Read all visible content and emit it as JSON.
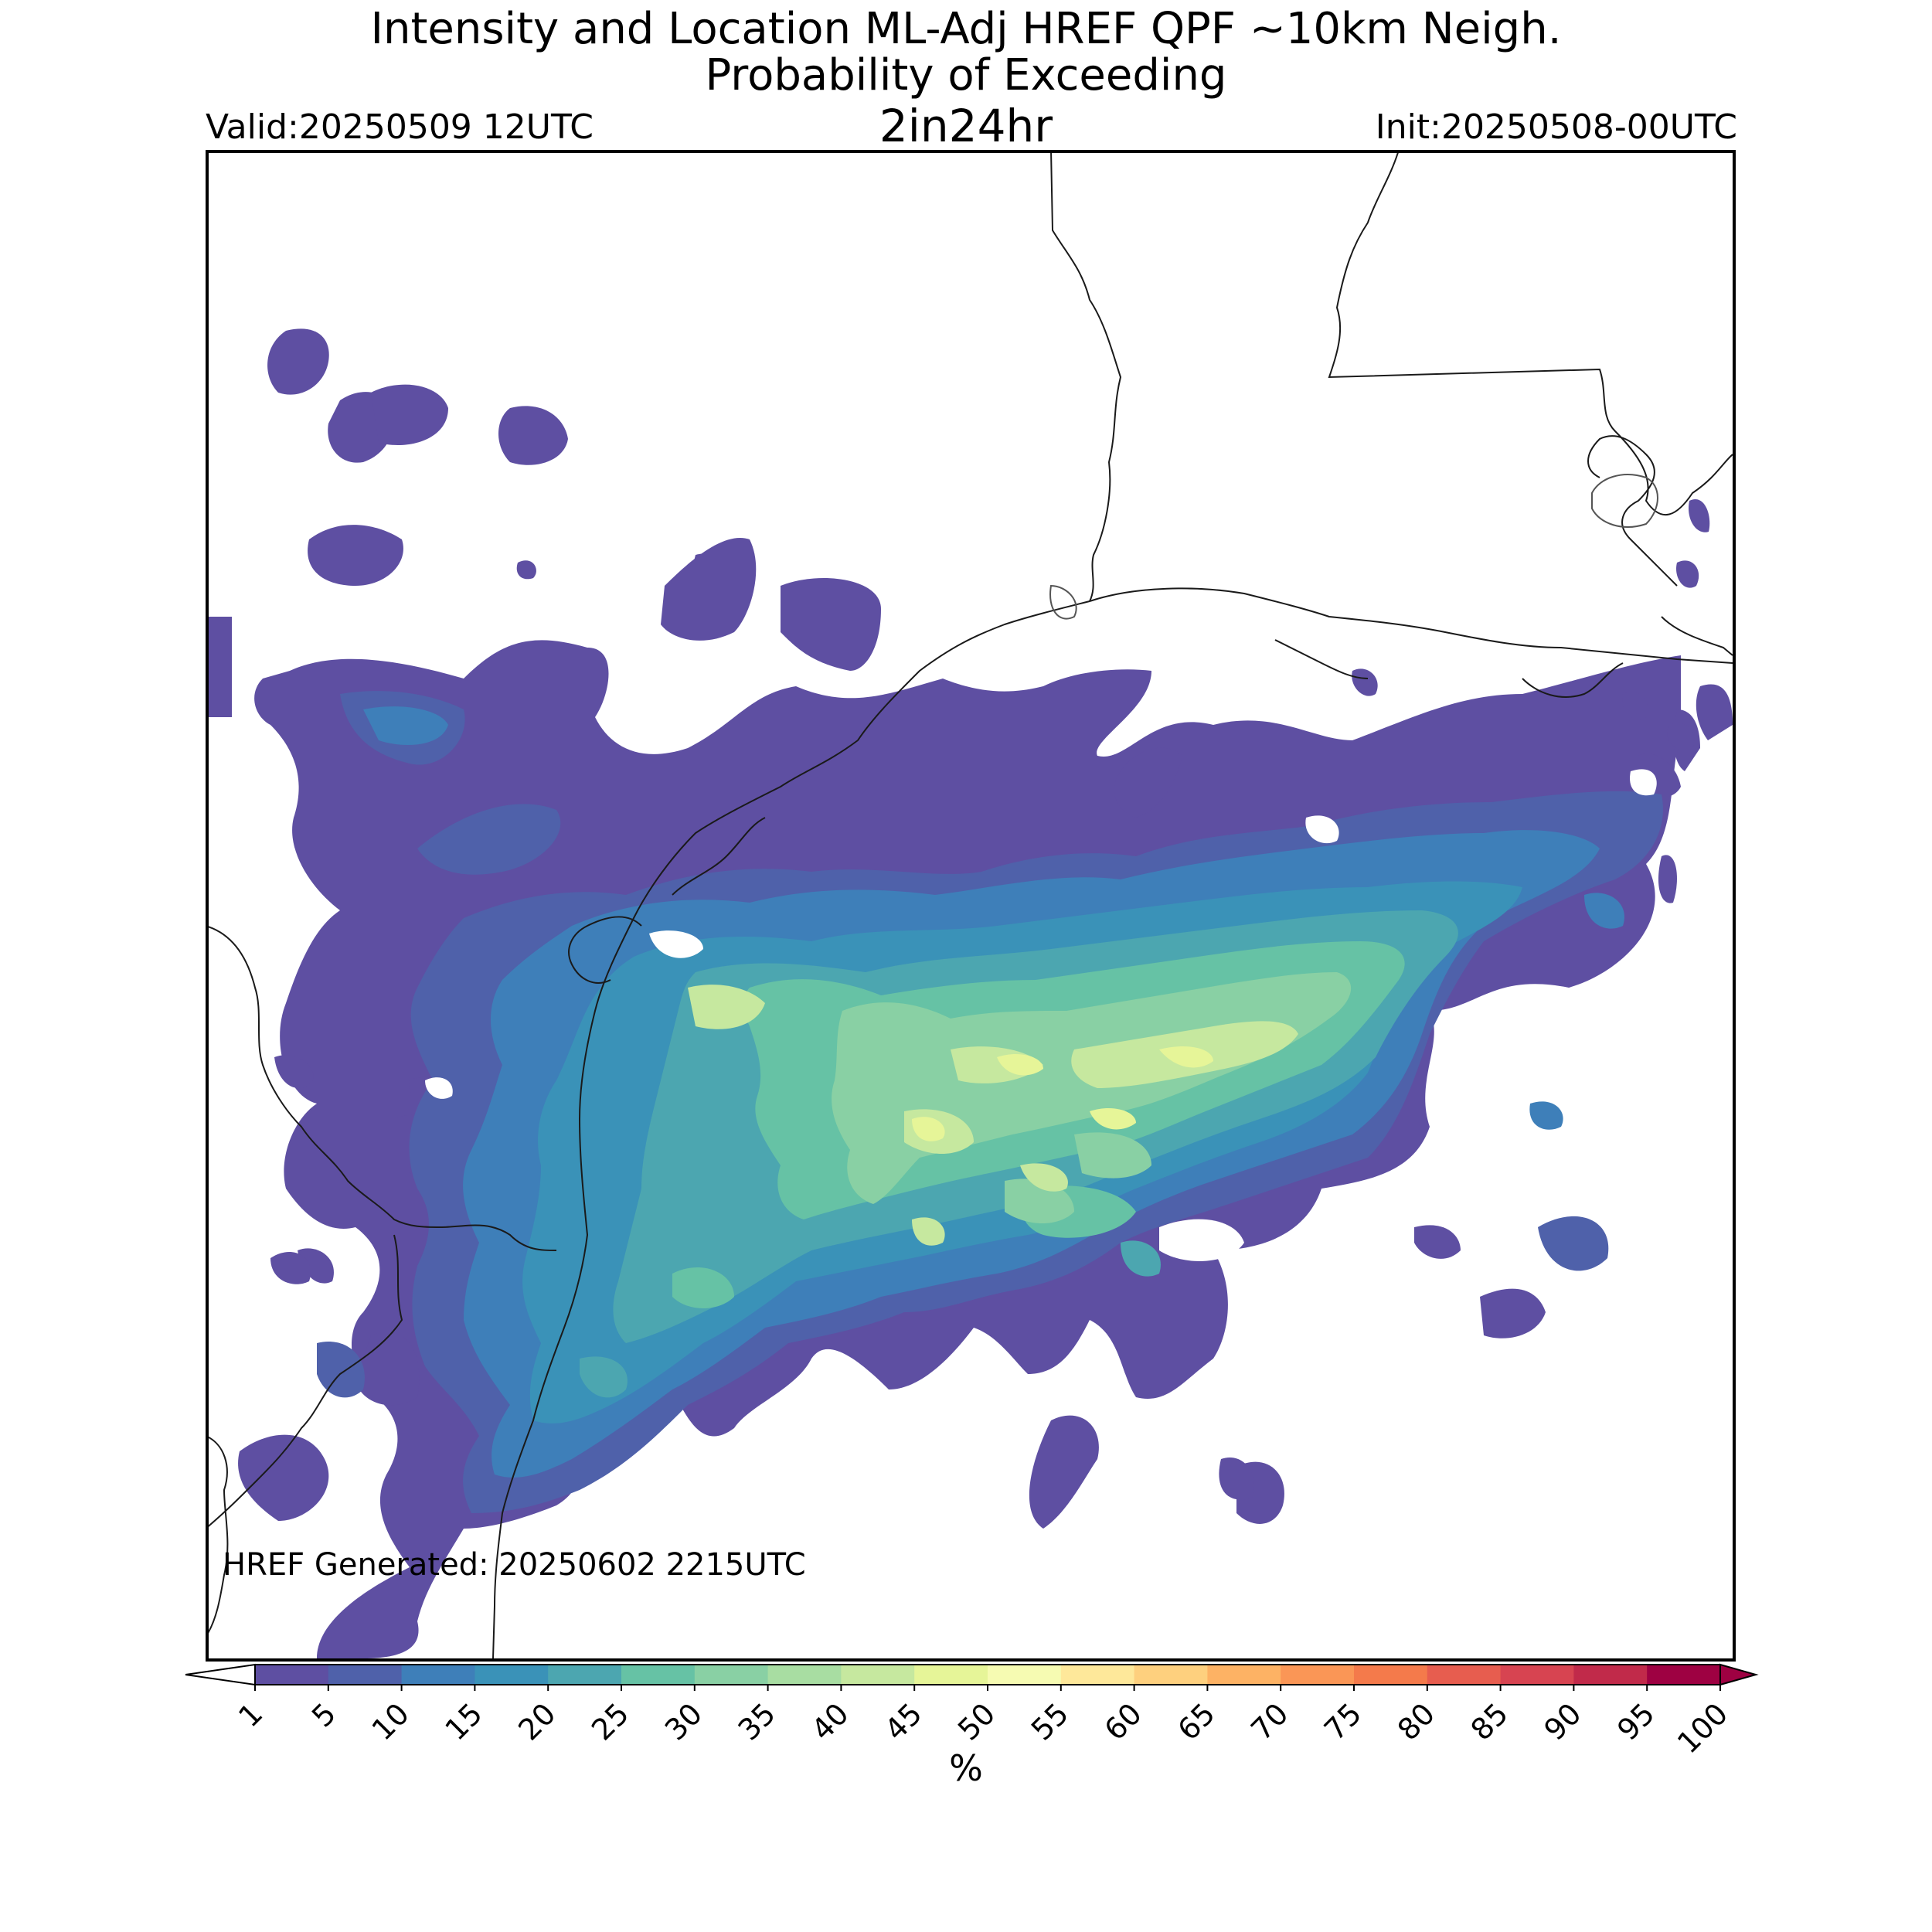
{
  "header": {
    "title_line1": "Intensity and Location ML-Adj HREF QPF ~10km Neigh.",
    "title_line2": "Probability of Exceeding",
    "threshold": "2in24hr",
    "valid": "Valid:20250509 12UTC",
    "init": "Init:20250508-00UTC"
  },
  "footer": {
    "generated": "HREF Generated: 20250602 2215UTC"
  },
  "colorbar": {
    "unit": "%",
    "ticks": [
      "1",
      "5",
      "10",
      "15",
      "20",
      "25",
      "30",
      "35",
      "40",
      "45",
      "50",
      "55",
      "60",
      "65",
      "70",
      "75",
      "80",
      "85",
      "90",
      "95",
      "100"
    ],
    "colors": [
      "#5e4fa2",
      "#4f61aa",
      "#3e7fb9",
      "#3a92b8",
      "#4ca6b0",
      "#66c2a5",
      "#89d0a4",
      "#a8dda2",
      "#c6e89f",
      "#e6f598",
      "#f6fbb2",
      "#fee89a",
      "#fed07e",
      "#fdb264",
      "#fa9656",
      "#f47a4b",
      "#e75d4f",
      "#d74451",
      "#c12a4a",
      "#9e0142"
    ]
  },
  "map": {
    "probability_regions": [
      {
        "level": "1-5%",
        "color": "#5e4fa2"
      },
      {
        "level": "10-15%",
        "color": "#3e7fb9"
      },
      {
        "level": "20-25%",
        "color": "#4ca6b0"
      },
      {
        "level": "30-35%",
        "color": "#89d0a4"
      },
      {
        "level": "40-45%",
        "color": "#c6e89f"
      },
      {
        "level": "45-50%",
        "color": "#e6f598"
      }
    ]
  }
}
